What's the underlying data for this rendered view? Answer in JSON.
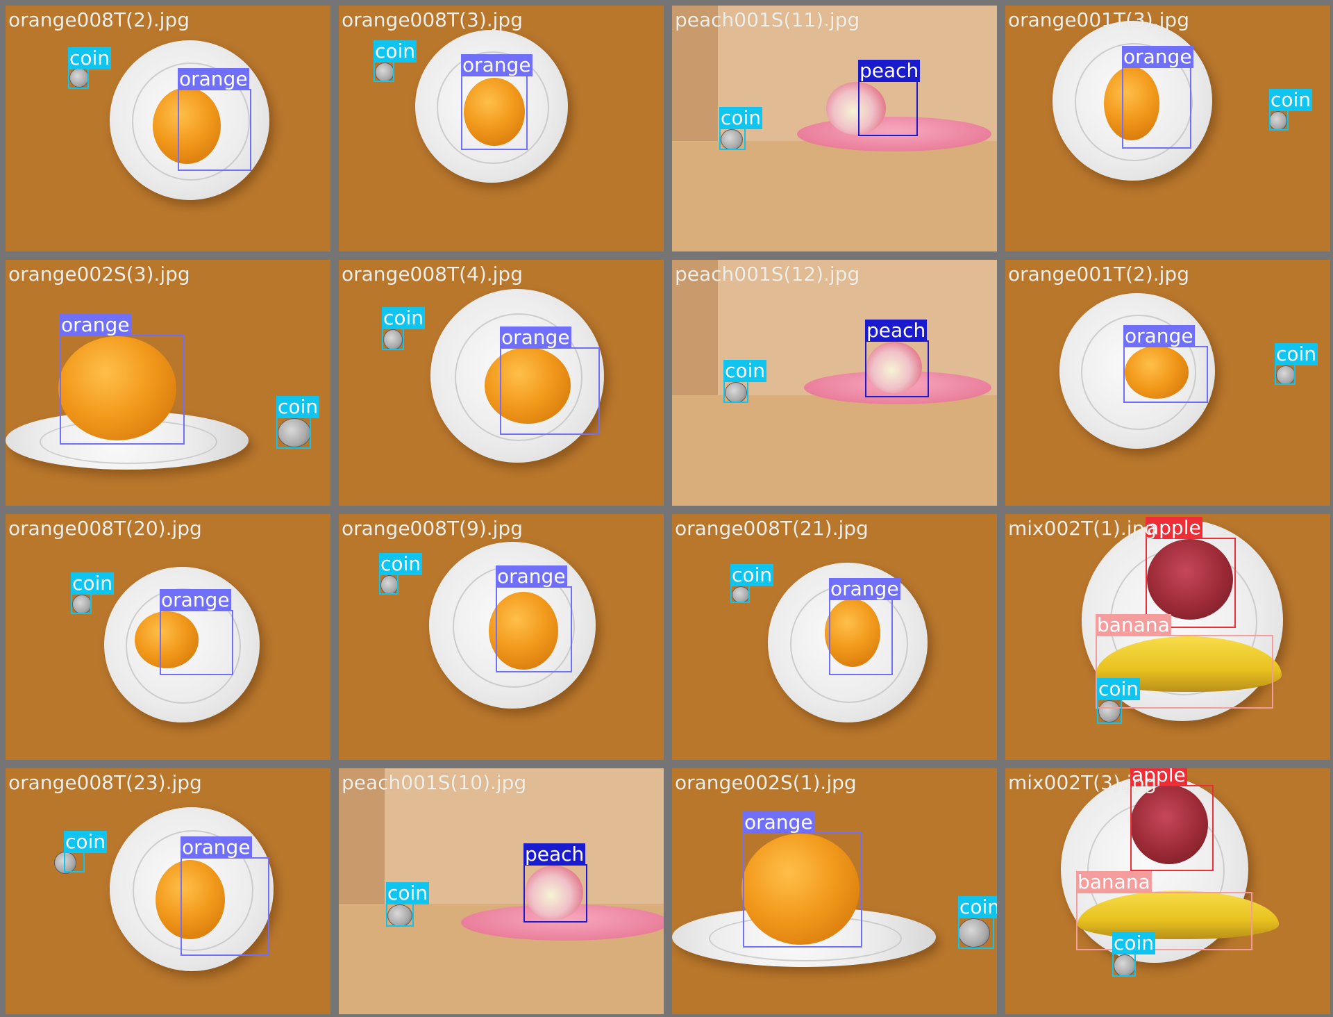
{
  "colors": {
    "orange": "#6f6ffb",
    "coin": "#0fc4ee",
    "peach": "#1a1acf",
    "apple": "#ef2d36",
    "banana": "#f59c9c",
    "tile_border": "#757575"
  },
  "tiles": [
    {
      "file": "orange008T(2).jpg",
      "detections": [
        {
          "label": "coin"
        },
        {
          "label": "orange"
        }
      ]
    },
    {
      "file": "orange008T(3).jpg",
      "detections": [
        {
          "label": "coin"
        },
        {
          "label": "orange"
        }
      ]
    },
    {
      "file": "peach001S(11).jpg",
      "detections": [
        {
          "label": "coin"
        },
        {
          "label": "peach"
        }
      ]
    },
    {
      "file": "orange001T(3).jpg",
      "detections": [
        {
          "label": "orange"
        },
        {
          "label": "coin"
        }
      ]
    },
    {
      "file": "orange002S(3).jpg",
      "detections": [
        {
          "label": "orange"
        },
        {
          "label": "coin"
        }
      ]
    },
    {
      "file": "orange008T(4).jpg",
      "detections": [
        {
          "label": "coin"
        },
        {
          "label": "orange"
        }
      ]
    },
    {
      "file": "peach001S(12).jpg",
      "detections": [
        {
          "label": "coin"
        },
        {
          "label": "peach"
        }
      ]
    },
    {
      "file": "orange001T(2).jpg",
      "detections": [
        {
          "label": "orange"
        },
        {
          "label": "coin"
        }
      ]
    },
    {
      "file": "orange008T(20).jpg",
      "detections": [
        {
          "label": "coin"
        },
        {
          "label": "orange"
        }
      ]
    },
    {
      "file": "orange008T(9).jpg",
      "detections": [
        {
          "label": "coin"
        },
        {
          "label": "orange"
        }
      ]
    },
    {
      "file": "orange008T(21).jpg",
      "detections": [
        {
          "label": "coin"
        },
        {
          "label": "orange"
        }
      ]
    },
    {
      "file": "mix002T(1).jpg",
      "detections": [
        {
          "label": "apple"
        },
        {
          "label": "banana"
        },
        {
          "label": "coin"
        }
      ]
    },
    {
      "file": "orange008T(23).jpg",
      "detections": [
        {
          "label": "coin"
        },
        {
          "label": "orange"
        }
      ]
    },
    {
      "file": "peach001S(10).jpg",
      "detections": [
        {
          "label": "coin"
        },
        {
          "label": "peach"
        }
      ]
    },
    {
      "file": "orange002S(1).jpg",
      "detections": [
        {
          "label": "orange"
        },
        {
          "label": "coin"
        }
      ]
    },
    {
      "file": "mix002T(3).jpg",
      "detections": [
        {
          "label": "apple"
        },
        {
          "label": "banana"
        },
        {
          "label": "coin"
        }
      ]
    }
  ]
}
